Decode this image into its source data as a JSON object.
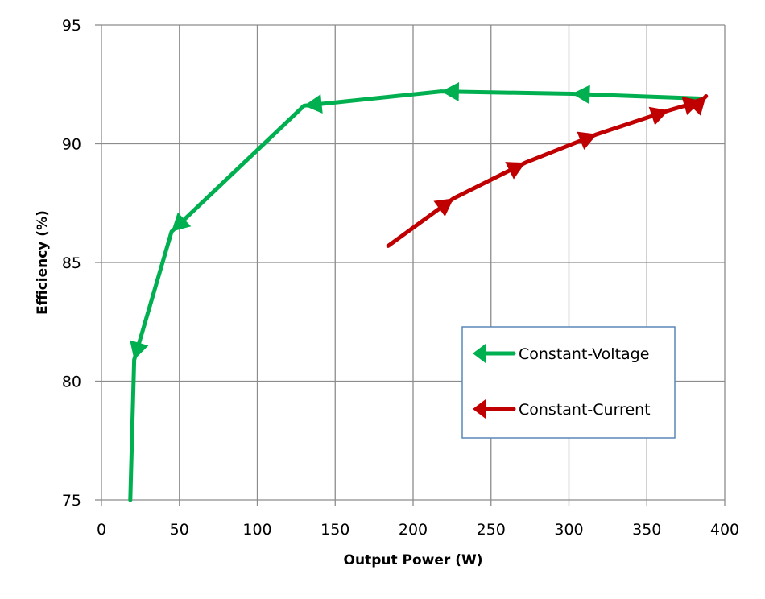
{
  "chart_data": {
    "type": "line",
    "title": "",
    "xlabel": "Output Power (W)",
    "ylabel": "Efficiency (%)",
    "xlim": [
      0,
      400
    ],
    "ylim": [
      75,
      95
    ],
    "xticks": [
      0,
      50,
      100,
      150,
      200,
      250,
      300,
      350,
      400
    ],
    "yticks": [
      75,
      80,
      85,
      90,
      95
    ],
    "grid": true,
    "legend_position": "inside-lower-right",
    "series": [
      {
        "name": "Constant-Voltage",
        "color": "#00b050",
        "marker": "arrow-left",
        "x": [
          385,
          302,
          218,
          130,
          45,
          21,
          18.5
        ],
        "y": [
          91.9,
          92.1,
          92.2,
          91.6,
          86.3,
          80.9,
          75.0
        ]
      },
      {
        "name": "Constant-Current",
        "color": "#c00000",
        "marker": "arrow-right",
        "x": [
          184,
          226,
          272,
          318,
          364,
          385,
          388
        ],
        "y": [
          85.7,
          87.7,
          89.2,
          90.4,
          91.4,
          91.8,
          92.0
        ]
      }
    ]
  },
  "axes": {
    "x_title": "Output Power (W)",
    "y_title": "Efficiency (%)",
    "x_ticks": [
      "0",
      "50",
      "100",
      "150",
      "200",
      "250",
      "300",
      "350",
      "400"
    ],
    "y_ticks": [
      "95",
      "90",
      "85",
      "80",
      "75"
    ]
  },
  "legend": {
    "items": [
      {
        "label": "Constant-Voltage",
        "color": "#00b050"
      },
      {
        "label": "Constant-Current",
        "color": "#c00000"
      }
    ]
  },
  "colors": {
    "grid": "#8c8c8c",
    "legend_border": "#5b87b9",
    "frame": "#8c8c8c"
  }
}
